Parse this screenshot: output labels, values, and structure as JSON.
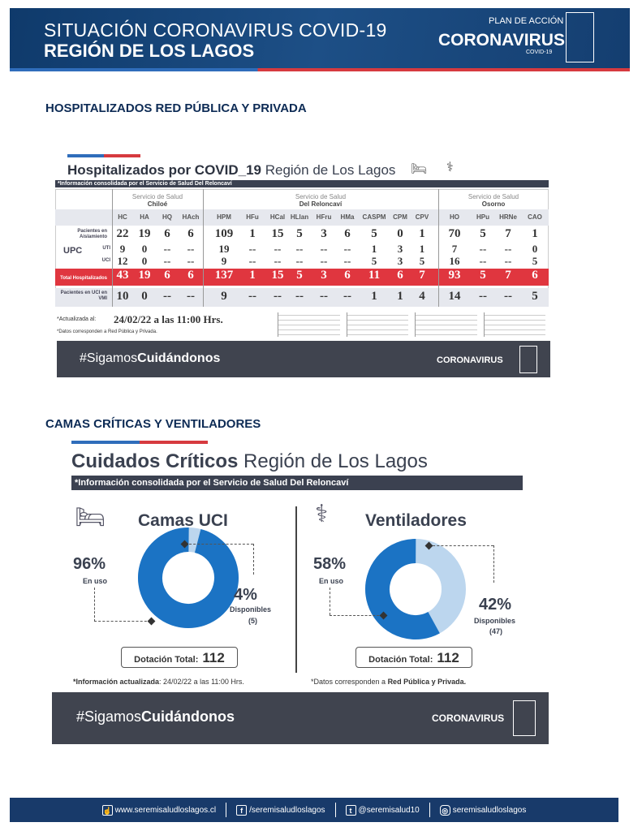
{
  "header": {
    "line1": "SITUACIÓN CORONAVIRUS COVID-19",
    "line2": "REGIÓN DE LOS LAGOS",
    "plan": "PLAN DE ACCIÓN",
    "coronavirus": "CORONAVIRUS",
    "covid": "COVID-19"
  },
  "section1_title": "HOSPITALIZADOS RED PÚBLICA Y PRIVADA",
  "hosp": {
    "title_bold": "Hospitalizados por COVID_19",
    "title_rest": " Región de Los Lagos",
    "info": "*Información consolidada por el Servicio de Salud Del Reloncaví",
    "groups": [
      {
        "pre": "Servicio de Salud",
        "name": "Chiloé"
      },
      {
        "pre": "Servicio de Salud",
        "name": "Del Reloncaví"
      },
      {
        "pre": "Servicio de Salud",
        "name": "Osorno"
      }
    ],
    "columns": [
      "HC",
      "HA",
      "HQ",
      "HAch",
      "HPM",
      "HFu",
      "HCal",
      "HLlan",
      "HFru",
      "HMa",
      "CASPM",
      "CPM",
      "CPV",
      "HO",
      "HPu",
      "HRNe",
      "CAO"
    ],
    "upc_label": "UPC",
    "rows": [
      {
        "label": "Pacientes en Aislamiento",
        "values": [
          "22",
          "19",
          "6",
          "6",
          "109",
          "1",
          "15",
          "5",
          "3",
          "6",
          "5",
          "0",
          "1",
          "70",
          "5",
          "7",
          "1"
        ]
      },
      {
        "label": "UTI",
        "values": [
          "9",
          "0",
          "--",
          "--",
          "19",
          "--",
          "--",
          "--",
          "--",
          "--",
          "1",
          "3",
          "1",
          "7",
          "--",
          "--",
          "0"
        ]
      },
      {
        "label": "UCI",
        "values": [
          "12",
          "0",
          "--",
          "--",
          "9",
          "--",
          "--",
          "--",
          "--",
          "--",
          "5",
          "3",
          "5",
          "16",
          "--",
          "--",
          "5"
        ]
      },
      {
        "label": "Total Hospitalizados",
        "values": [
          "43",
          "19",
          "6",
          "6",
          "137",
          "1",
          "15",
          "5",
          "3",
          "6",
          "11",
          "6",
          "7",
          "93",
          "5",
          "7",
          "6"
        ]
      },
      {
        "label": "Pacientes en UCI en VMI",
        "values": [
          "10",
          "0",
          "--",
          "--",
          "9",
          "--",
          "--",
          "--",
          "--",
          "--",
          "1",
          "1",
          "4",
          "14",
          "--",
          "--",
          "5"
        ]
      }
    ],
    "updated_label": "*Actualizada al:",
    "updated_value": "24/02/22 a las 11:00 Hrs.",
    "note": "*Datos corresponden a Red Pública y Privada.",
    "hashtag_pre": "#Sigamos",
    "hashtag_bold": "Cuidándonos",
    "colors": {
      "total_row": "#e0363f",
      "header_bar": "#3b4150"
    }
  },
  "section2_title": "CAMAS CRÍTICAS Y VENTILADORES",
  "critical": {
    "title_bold": "Cuidados Críticos",
    "title_rest": " Región de Los Lagos",
    "info": "*Información consolidada por el Servicio de Salud Del Reloncaví",
    "camas": {
      "title": "Camas UCI",
      "in_use_pct": "96%",
      "in_use_label": "En uso",
      "avail_pct": "4%",
      "avail_label": "Disponibles",
      "avail_count": "(5)",
      "total_label": "Dotación Total:",
      "total": "112",
      "in_use_value": 96
    },
    "vent": {
      "title": "Ventiladores",
      "in_use_pct": "58%",
      "in_use_label": "En uso",
      "avail_pct": "42%",
      "avail_label": "Disponibles",
      "avail_count": "(47)",
      "total_label": "Dotación Total:",
      "total": "112",
      "in_use_value": 58
    },
    "updated_bold": "*Información actualizada",
    "updated_rest": ": 24/02/22 a las 11:00 Hrs.",
    "note_pre": "*Datos corresponden a ",
    "note_bold": "Red Pública y Privada.",
    "hashtag_pre": "#Sigamos",
    "hashtag_bold": "Cuidándonos",
    "colors": {
      "in_use": "#1b73c4",
      "available": "#bcd6ee"
    }
  },
  "footer": {
    "web": "www.seremisaludloslagos.cl",
    "facebook": "/seremisaludloslagos",
    "twitter": "@seremisalud10",
    "instagram": "seremisaludloslagos"
  }
}
